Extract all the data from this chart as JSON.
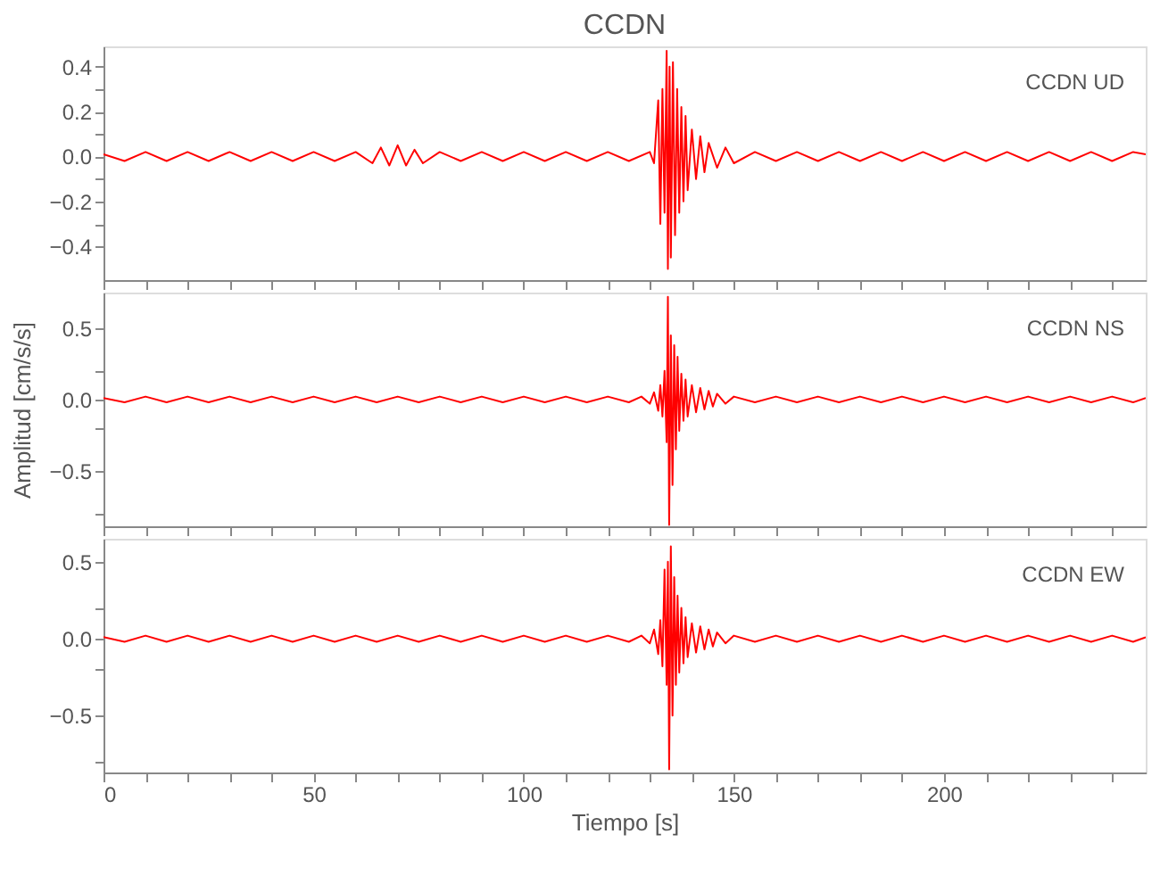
{
  "chart_data": [
    {
      "type": "line",
      "title": "CCDN",
      "annotations": [
        "CCDN UD"
      ],
      "tick_labels": "y",
      "grid": false,
      "x": [
        0,
        5,
        10,
        15,
        20,
        25,
        30,
        35,
        40,
        45,
        50,
        55,
        60,
        64,
        66,
        68,
        70,
        72,
        74,
        76,
        80,
        85,
        90,
        95,
        100,
        105,
        110,
        115,
        120,
        125,
        130,
        131,
        132,
        132.5,
        133,
        133.5,
        134,
        134.3,
        134.7,
        135,
        135.5,
        136,
        136.5,
        137,
        137.5,
        138,
        138.5,
        139,
        140,
        141,
        142,
        143,
        144,
        146,
        148,
        150,
        155,
        160,
        165,
        170,
        175,
        180,
        185,
        190,
        195,
        200,
        205,
        210,
        215,
        220,
        225,
        230,
        235,
        240,
        245,
        248
      ],
      "series": [
        {
          "color": "#ff0000",
          "values": [
            0.01,
            -0.02,
            0.02,
            -0.02,
            0.02,
            -0.02,
            0.02,
            -0.02,
            0.02,
            -0.02,
            0.02,
            -0.02,
            0.02,
            -0.03,
            0.04,
            -0.04,
            0.05,
            -0.04,
            0.03,
            -0.03,
            0.02,
            -0.02,
            0.02,
            -0.02,
            0.02,
            -0.02,
            0.02,
            -0.02,
            0.02,
            -0.02,
            0.02,
            -0.03,
            0.25,
            -0.3,
            0.3,
            -0.25,
            0.47,
            -0.5,
            0.4,
            -0.45,
            0.42,
            -0.35,
            0.3,
            -0.25,
            0.22,
            -0.2,
            0.18,
            -0.15,
            0.12,
            -0.1,
            0.09,
            -0.07,
            0.06,
            -0.05,
            0.04,
            -0.03,
            0.02,
            -0.02,
            0.02,
            -0.02,
            0.02,
            -0.02,
            0.02,
            -0.02,
            0.02,
            -0.02,
            0.02,
            -0.02,
            0.02,
            -0.02,
            0.02,
            -0.02,
            0.02,
            -0.02,
            0.02,
            0.01
          ]
        }
      ],
      "xlim": [
        0,
        248
      ],
      "ylim": [
        -0.55,
        0.49
      ],
      "xticks": [
        {
          "value": 0,
          "label": null
        },
        {
          "value": 10,
          "label": null
        },
        {
          "value": 20,
          "label": null
        },
        {
          "value": 30,
          "label": null
        },
        {
          "value": 40,
          "label": null
        },
        {
          "value": 50,
          "label": null
        },
        {
          "value": 60,
          "label": null
        },
        {
          "value": 70,
          "label": null
        },
        {
          "value": 80,
          "label": null
        },
        {
          "value": 90,
          "label": null
        },
        {
          "value": 100,
          "label": null
        },
        {
          "value": 110,
          "label": null
        },
        {
          "value": 120,
          "label": null
        },
        {
          "value": 130,
          "label": null
        },
        {
          "value": 140,
          "label": null
        },
        {
          "value": 150,
          "label": null
        },
        {
          "value": 160,
          "label": null
        },
        {
          "value": 170,
          "label": null
        },
        {
          "value": 180,
          "label": null
        },
        {
          "value": 190,
          "label": null
        },
        {
          "value": 200,
          "label": null
        },
        {
          "value": 210,
          "label": null
        },
        {
          "value": 220,
          "label": null
        },
        {
          "value": 230,
          "label": null
        },
        {
          "value": 240,
          "label": null
        }
      ],
      "yticks": [
        {
          "value": -0.4,
          "label": "−0.4"
        },
        {
          "value": -0.3,
          "label": null
        },
        {
          "value": -0.2,
          "label": "−0.2"
        },
        {
          "value": -0.1,
          "label": null
        },
        {
          "value": 0,
          "label": "0.0"
        },
        {
          "value": 0.1,
          "label": null
        },
        {
          "value": 0.2,
          "label": "0.2"
        },
        {
          "value": 0.3,
          "label": null
        },
        {
          "value": 0.4,
          "label": "0.4"
        }
      ]
    },
    {
      "type": "line",
      "ylabel": "Amplitud [cm/s/s]",
      "annotations": [
        "CCDN NS"
      ],
      "tick_labels": "y",
      "grid": false,
      "x": [
        0,
        5,
        10,
        15,
        20,
        25,
        30,
        35,
        40,
        45,
        50,
        55,
        60,
        65,
        70,
        75,
        80,
        85,
        90,
        95,
        100,
        105,
        110,
        115,
        120,
        125,
        128,
        130,
        131,
        132,
        132.5,
        133,
        133.5,
        134,
        134.3,
        134.6,
        135,
        135.4,
        135.8,
        136.2,
        136.6,
        137,
        137.5,
        138,
        138.5,
        139,
        140,
        141,
        142,
        143,
        144,
        145,
        146,
        148,
        150,
        155,
        160,
        165,
        170,
        175,
        180,
        185,
        190,
        195,
        200,
        205,
        210,
        215,
        220,
        225,
        230,
        235,
        240,
        245,
        248
      ],
      "series": [
        {
          "color": "#ff0000",
          "values": [
            0.01,
            -0.02,
            0.02,
            -0.02,
            0.02,
            -0.02,
            0.02,
            -0.02,
            0.02,
            -0.02,
            0.02,
            -0.02,
            0.02,
            -0.02,
            0.02,
            -0.02,
            0.02,
            -0.02,
            0.02,
            -0.02,
            0.02,
            -0.02,
            0.02,
            -0.02,
            0.02,
            -0.02,
            0.02,
            -0.03,
            0.05,
            -0.08,
            0.1,
            -0.12,
            0.2,
            -0.3,
            0.72,
            -0.88,
            0.45,
            -0.6,
            0.38,
            -0.35,
            0.3,
            -0.22,
            0.18,
            -0.15,
            0.14,
            -0.12,
            0.1,
            -0.09,
            0.08,
            -0.07,
            0.06,
            -0.05,
            0.04,
            -0.03,
            0.02,
            -0.02,
            0.02,
            -0.02,
            0.02,
            -0.02,
            0.02,
            -0.02,
            0.02,
            -0.02,
            0.02,
            -0.02,
            0.02,
            -0.02,
            0.02,
            -0.02,
            0.02,
            -0.02,
            0.02,
            -0.02,
            0.01
          ]
        }
      ],
      "xlim": [
        0,
        248
      ],
      "ylim": [
        -0.89,
        0.75
      ],
      "xticks": [
        {
          "value": 0,
          "label": null
        },
        {
          "value": 10,
          "label": null
        },
        {
          "value": 20,
          "label": null
        },
        {
          "value": 30,
          "label": null
        },
        {
          "value": 40,
          "label": null
        },
        {
          "value": 50,
          "label": null
        },
        {
          "value": 60,
          "label": null
        },
        {
          "value": 70,
          "label": null
        },
        {
          "value": 80,
          "label": null
        },
        {
          "value": 90,
          "label": null
        },
        {
          "value": 100,
          "label": null
        },
        {
          "value": 110,
          "label": null
        },
        {
          "value": 120,
          "label": null
        },
        {
          "value": 130,
          "label": null
        },
        {
          "value": 140,
          "label": null
        },
        {
          "value": 150,
          "label": null
        },
        {
          "value": 160,
          "label": null
        },
        {
          "value": 170,
          "label": null
        },
        {
          "value": 180,
          "label": null
        },
        {
          "value": 190,
          "label": null
        },
        {
          "value": 200,
          "label": null
        },
        {
          "value": 210,
          "label": null
        },
        {
          "value": 220,
          "label": null
        },
        {
          "value": 230,
          "label": null
        },
        {
          "value": 240,
          "label": null
        }
      ],
      "yticks": [
        {
          "value": -0.8,
          "label": null
        },
        {
          "value": -0.5,
          "label": "−0.5"
        },
        {
          "value": -0.2,
          "label": null
        },
        {
          "value": 0,
          "label": "0.0"
        },
        {
          "value": 0.2,
          "label": null
        },
        {
          "value": 0.5,
          "label": "0.5"
        }
      ]
    },
    {
      "type": "line",
      "xlabel": "Tiempo [s]",
      "annotations": [
        "CCDN EW"
      ],
      "grid": false,
      "x": [
        0,
        5,
        10,
        15,
        20,
        25,
        30,
        35,
        40,
        45,
        50,
        55,
        60,
        65,
        70,
        75,
        80,
        85,
        90,
        95,
        100,
        105,
        110,
        115,
        120,
        125,
        128,
        130,
        131,
        132,
        132.5,
        133,
        133.5,
        134,
        134.3,
        134.6,
        135,
        135.4,
        135.8,
        136.2,
        136.6,
        137,
        137.5,
        138,
        138.5,
        139,
        140,
        141,
        142,
        143,
        144,
        145,
        146,
        148,
        150,
        155,
        160,
        165,
        170,
        175,
        180,
        185,
        190,
        195,
        200,
        205,
        210,
        215,
        220,
        225,
        230,
        235,
        240,
        245,
        248
      ],
      "series": [
        {
          "color": "#ff0000",
          "values": [
            0.01,
            -0.02,
            0.02,
            -0.02,
            0.02,
            -0.02,
            0.02,
            -0.02,
            0.02,
            -0.02,
            0.02,
            -0.02,
            0.02,
            -0.02,
            0.02,
            -0.02,
            0.02,
            -0.02,
            0.02,
            -0.02,
            0.02,
            -0.02,
            0.02,
            -0.02,
            0.02,
            -0.02,
            0.02,
            -0.03,
            0.06,
            -0.1,
            0.12,
            -0.18,
            0.45,
            -0.3,
            0.5,
            -0.85,
            0.6,
            -0.5,
            0.4,
            -0.3,
            0.28,
            -0.22,
            0.2,
            -0.16,
            0.14,
            -0.12,
            0.1,
            -0.09,
            0.08,
            -0.07,
            0.06,
            -0.05,
            0.04,
            -0.03,
            0.02,
            -0.02,
            0.02,
            -0.02,
            0.02,
            -0.02,
            0.02,
            -0.02,
            0.02,
            -0.02,
            0.02,
            -0.02,
            0.02,
            -0.02,
            0.02,
            -0.02,
            0.02,
            -0.02,
            0.02,
            -0.02,
            0.01
          ]
        }
      ],
      "xlim": [
        0,
        248
      ],
      "ylim": [
        -0.87,
        0.65
      ],
      "xticks": [
        {
          "value": 0,
          "label": "0"
        },
        {
          "value": 10,
          "label": null
        },
        {
          "value": 20,
          "label": null
        },
        {
          "value": 30,
          "label": null
        },
        {
          "value": 40,
          "label": null
        },
        {
          "value": 50,
          "label": "50"
        },
        {
          "value": 60,
          "label": null
        },
        {
          "value": 70,
          "label": null
        },
        {
          "value": 80,
          "label": null
        },
        {
          "value": 90,
          "label": null
        },
        {
          "value": 100,
          "label": "100"
        },
        {
          "value": 110,
          "label": null
        },
        {
          "value": 120,
          "label": null
        },
        {
          "value": 130,
          "label": null
        },
        {
          "value": 140,
          "label": null
        },
        {
          "value": 150,
          "label": "150"
        },
        {
          "value": 160,
          "label": null
        },
        {
          "value": 170,
          "label": null
        },
        {
          "value": 180,
          "label": null
        },
        {
          "value": 190,
          "label": null
        },
        {
          "value": 200,
          "label": "200"
        },
        {
          "value": 210,
          "label": null
        },
        {
          "value": 220,
          "label": null
        },
        {
          "value": 230,
          "label": null
        },
        {
          "value": 240,
          "label": null
        }
      ],
      "yticks": [
        {
          "value": -0.8,
          "label": null
        },
        {
          "value": -0.5,
          "label": "−0.5"
        },
        {
          "value": -0.2,
          "label": null
        },
        {
          "value": 0,
          "label": "0.0"
        },
        {
          "value": 0.2,
          "label": null
        },
        {
          "value": 0.5,
          "label": "0.5"
        }
      ]
    }
  ]
}
